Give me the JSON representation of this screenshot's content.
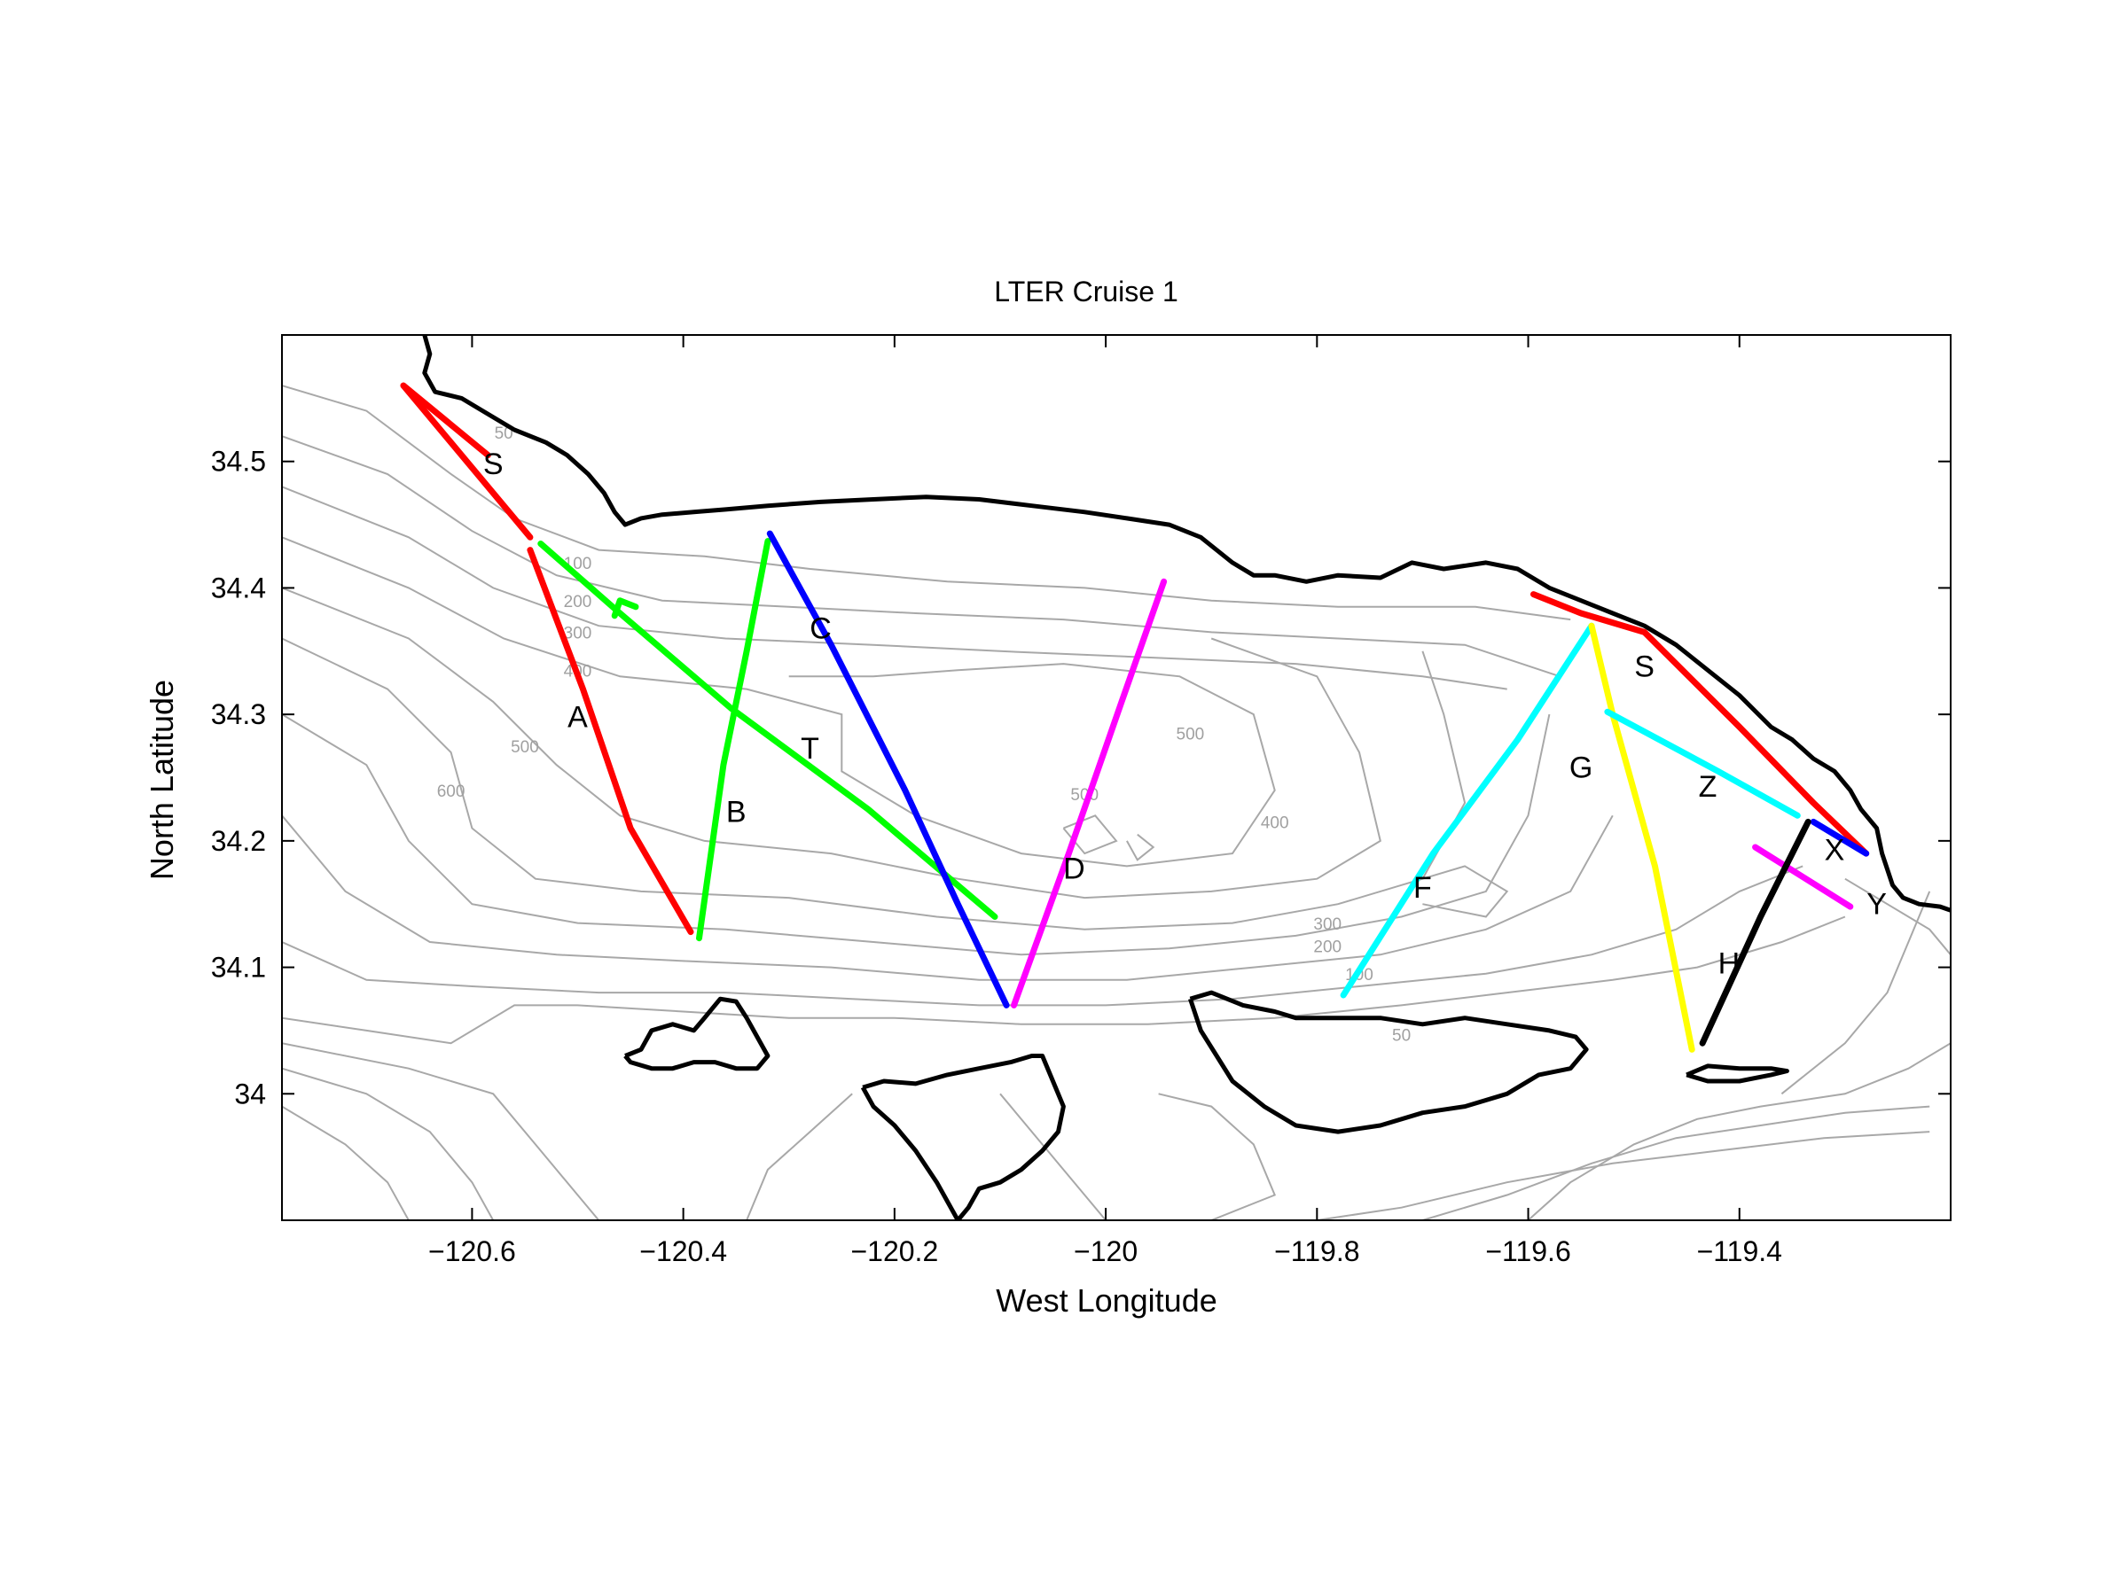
{
  "chart_data": {
    "type": "map",
    "title": "LTER Cruise 1",
    "xlabel": "West Longitude",
    "ylabel": "North Latitude",
    "xlim": [
      -120.78,
      -119.2
    ],
    "ylim": [
      33.9,
      34.6
    ],
    "x_ticks": [
      -120.6,
      -120.4,
      -120.2,
      -120.0,
      -119.8,
      -119.6,
      -119.4
    ],
    "x_tick_labels": [
      "−120.6",
      "−120.4",
      "−120.2",
      "−120",
      "−119.8",
      "−119.6",
      "−119.4"
    ],
    "y_ticks": [
      34.0,
      34.1,
      34.2,
      34.3,
      34.4,
      34.5
    ],
    "y_tick_labels": [
      "34",
      "34.1",
      "34.2",
      "34.3",
      "34.4",
      "34.5"
    ],
    "contour_labels": [
      {
        "text": "50",
        "lon": -120.57,
        "lat": 34.518
      },
      {
        "text": "100",
        "lon": -120.5,
        "lat": 34.415
      },
      {
        "text": "200",
        "lon": -120.5,
        "lat": 34.385
      },
      {
        "text": "300",
        "lon": -120.5,
        "lat": 34.36
      },
      {
        "text": "400",
        "lon": -120.5,
        "lat": 34.33
      },
      {
        "text": "500",
        "lon": -120.55,
        "lat": 34.27
      },
      {
        "text": "600",
        "lon": -120.62,
        "lat": 34.235
      },
      {
        "text": "500",
        "lon": -119.92,
        "lat": 34.28
      },
      {
        "text": "500",
        "lon": -120.02,
        "lat": 34.232
      },
      {
        "text": "400",
        "lon": -119.84,
        "lat": 34.21
      },
      {
        "text": "300",
        "lon": -119.79,
        "lat": 34.13
      },
      {
        "text": "200",
        "lon": -119.79,
        "lat": 34.112
      },
      {
        "text": "100",
        "lon": -119.76,
        "lat": 34.09
      },
      {
        "text": "50",
        "lon": -119.72,
        "lat": 34.042
      }
    ],
    "transects": [
      {
        "label": "S",
        "color": "#ff0000",
        "label_pos": [
          -120.58,
          34.49
        ],
        "points": [
          [
            -120.665,
            34.56
          ],
          [
            -120.585,
            34.505
          ]
        ]
      },
      {
        "label": "",
        "color": "#ff0000",
        "label_pos": null,
        "points": [
          [
            -120.665,
            34.56
          ],
          [
            -120.545,
            34.44
          ]
        ]
      },
      {
        "label": "A",
        "color": "#ff0000",
        "label_pos": [
          -120.5,
          34.29
        ],
        "points": [
          [
            -120.545,
            34.43
          ],
          [
            -120.495,
            34.32
          ],
          [
            -120.45,
            34.21
          ],
          [
            -120.393,
            34.128
          ]
        ]
      },
      {
        "label": "T",
        "color": "#00ff00",
        "label_pos": [
          -120.28,
          34.265
        ],
        "points": [
          [
            -120.535,
            34.435
          ],
          [
            -120.46,
            34.38
          ],
          [
            -120.355,
            34.305
          ],
          [
            -120.225,
            34.225
          ],
          [
            -120.105,
            34.14
          ]
        ]
      },
      {
        "label": "",
        "color": "#00ff00",
        "label_pos": null,
        "points": [
          [
            -120.465,
            34.378
          ],
          [
            -120.46,
            34.39
          ],
          [
            -120.445,
            34.385
          ]
        ]
      },
      {
        "label": "B",
        "color": "#00ff00",
        "label_pos": [
          -120.35,
          34.215
        ],
        "points": [
          [
            -120.385,
            34.123
          ],
          [
            -120.362,
            34.26
          ],
          [
            -120.34,
            34.35
          ],
          [
            -120.32,
            34.437
          ]
        ]
      },
      {
        "label": "C",
        "color": "#0000ff",
        "label_pos": [
          -120.27,
          34.36
        ],
        "points": [
          [
            -120.318,
            34.443
          ],
          [
            -120.26,
            34.355
          ],
          [
            -120.19,
            34.24
          ],
          [
            -120.14,
            34.15
          ],
          [
            -120.094,
            34.07
          ]
        ]
      },
      {
        "label": "D",
        "color": "#ff00ff",
        "label_pos": [
          -120.03,
          34.17
        ],
        "points": [
          [
            -120.087,
            34.07
          ],
          [
            -120.035,
            34.19
          ],
          [
            -119.985,
            34.31
          ],
          [
            -119.945,
            34.405
          ]
        ]
      },
      {
        "label": "F",
        "color": "#00ffff",
        "label_pos": [
          -119.7,
          34.155
        ],
        "points": [
          [
            -119.775,
            34.078
          ],
          [
            -119.69,
            34.19
          ],
          [
            -119.61,
            34.28
          ],
          [
            -119.54,
            34.37
          ]
        ]
      },
      {
        "label": "S",
        "color": "#ff0000",
        "label_pos": [
          -119.49,
          34.33
        ],
        "points": [
          [
            -119.595,
            34.395
          ],
          [
            -119.55,
            34.38
          ],
          [
            -119.49,
            34.365
          ],
          [
            -119.4,
            34.29
          ],
          [
            -119.33,
            34.23
          ],
          [
            -119.28,
            34.19
          ]
        ]
      },
      {
        "label": "G",
        "color": "#ffff00",
        "label_pos": [
          -119.55,
          34.25
        ],
        "points": [
          [
            -119.54,
            34.37
          ],
          [
            -119.52,
            34.3
          ],
          [
            -119.48,
            34.18
          ],
          [
            -119.445,
            34.035
          ]
        ]
      },
      {
        "label": "Z",
        "color": "#00ffff",
        "label_pos": [
          -119.43,
          34.235
        ],
        "points": [
          [
            -119.525,
            34.302
          ],
          [
            -119.42,
            34.255
          ],
          [
            -119.345,
            34.22
          ]
        ]
      },
      {
        "label": "X",
        "color": "#0000ff",
        "label_pos": [
          -119.31,
          34.185
        ],
        "points": [
          [
            -119.33,
            34.215
          ],
          [
            -119.28,
            34.19
          ]
        ]
      },
      {
        "label": "Y",
        "color": "#ff00ff",
        "label_pos": [
          -119.27,
          34.142
        ],
        "points": [
          [
            -119.385,
            34.195
          ],
          [
            -119.295,
            34.148
          ]
        ]
      },
      {
        "label": "H",
        "color": "#000000",
        "label_pos": [
          -119.41,
          34.095
        ],
        "points": [
          [
            -119.335,
            34.215
          ],
          [
            -119.38,
            34.14
          ],
          [
            -119.435,
            34.04
          ]
        ]
      }
    ]
  }
}
